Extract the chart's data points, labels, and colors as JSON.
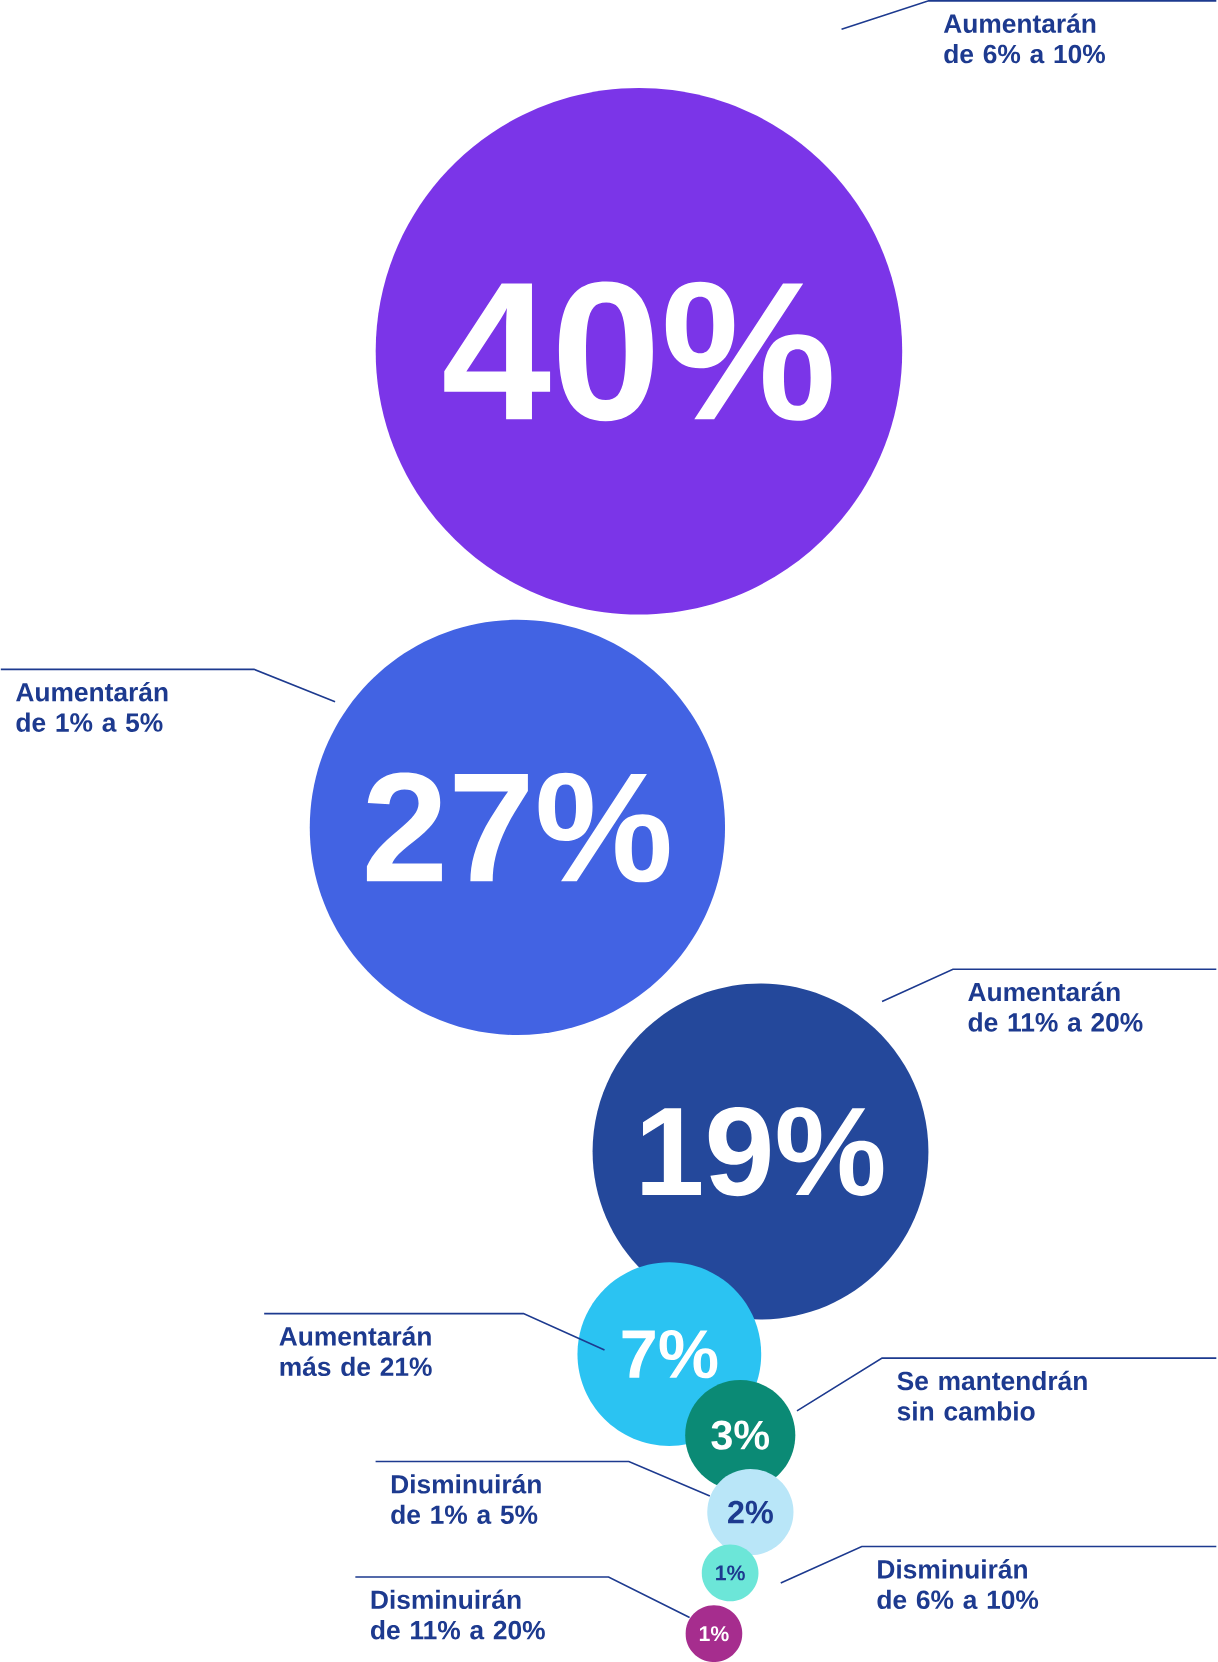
{
  "chart_data": {
    "type": "other",
    "categories": [
      "Aumentarán de 6% a 10%",
      "Aumentarán de 1% a 5%",
      "Aumentarán de 11% a 20%",
      "Aumentarán más de 21%",
      "Se mantendrán sin cambio",
      "Disminuirán de 1% a 5%",
      "Disminuirán de 6% a 10%",
      "Disminuirán de 11% a 20%"
    ],
    "values": [
      40,
      27,
      19,
      7,
      3,
      2,
      1,
      1
    ],
    "value_labels": [
      "40%",
      "27%",
      "19%",
      "7%",
      "3%",
      "2%",
      "1%",
      "1%"
    ],
    "colors": [
      "#7b35e8",
      "#4263e3",
      "#24489b",
      "#2bc3f2",
      "#0b8a75",
      "#b9e6f8",
      "#6ce6d8",
      "#a62d8e"
    ]
  }
}
